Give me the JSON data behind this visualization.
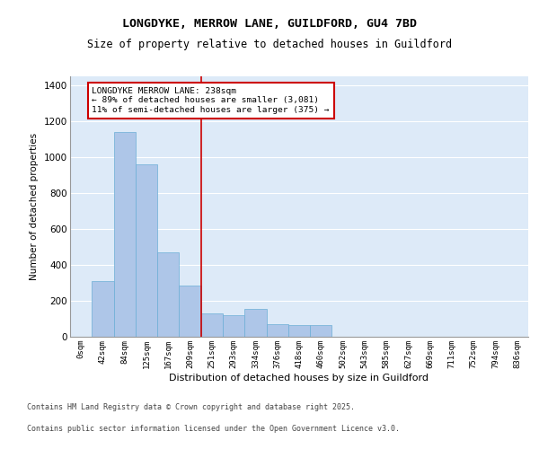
{
  "title_line1": "LONGDYKE, MERROW LANE, GUILDFORD, GU4 7BD",
  "title_line2": "Size of property relative to detached houses in Guildford",
  "xlabel": "Distribution of detached houses by size in Guildford",
  "ylabel": "Number of detached properties",
  "bar_labels": [
    "0sqm",
    "42sqm",
    "84sqm",
    "125sqm",
    "167sqm",
    "209sqm",
    "251sqm",
    "293sqm",
    "334sqm",
    "376sqm",
    "418sqm",
    "460sqm",
    "502sqm",
    "543sqm",
    "585sqm",
    "627sqm",
    "669sqm",
    "711sqm",
    "752sqm",
    "794sqm",
    "836sqm"
  ],
  "bar_heights": [
    2,
    310,
    1140,
    960,
    470,
    285,
    130,
    120,
    155,
    70,
    65,
    65,
    0,
    0,
    0,
    0,
    0,
    0,
    0,
    0,
    0
  ],
  "bar_color": "#aec6e8",
  "bar_edge_color": "#6baed6",
  "bg_color": "#ddeaf8",
  "grid_color": "#ffffff",
  "red_line_x": 5.5,
  "ylim": [
    0,
    1450
  ],
  "yticks": [
    0,
    200,
    400,
    600,
    800,
    1000,
    1200,
    1400
  ],
  "annotation_text": "LONGDYKE MERROW LANE: 238sqm\n← 89% of detached houses are smaller (3,081)\n11% of semi-detached houses are larger (375) →",
  "annotation_box_color": "#ffffff",
  "annotation_box_edge": "#cc0000",
  "red_line_color": "#cc0000",
  "footer_line1": "Contains HM Land Registry data © Crown copyright and database right 2025.",
  "footer_line2": "Contains public sector information licensed under the Open Government Licence v3.0."
}
